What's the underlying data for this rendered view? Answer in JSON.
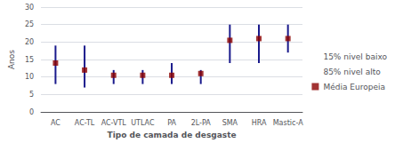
{
  "chart_data": {
    "type": "range",
    "categories": [
      "AC",
      "AC-TL",
      "AC-VTL",
      "UTLAC",
      "PA",
      "2L-PA",
      "SMA",
      "HRA",
      "Mastic-A"
    ],
    "series": [
      {
        "name": "15% nivel baixo",
        "color": "#1a1a8c",
        "values": [
          8,
          7,
          8,
          8,
          8,
          8,
          14,
          14,
          17
        ]
      },
      {
        "name": "85% nivel alto",
        "color": "#1a1a8c",
        "values": [
          19,
          19,
          12,
          12,
          14,
          12,
          25,
          25,
          25
        ]
      },
      {
        "name": "Média Europeia",
        "color": "#8b0000",
        "marker": "square",
        "values": [
          14,
          12,
          10.5,
          10.5,
          10.5,
          11,
          20.5,
          21,
          21
        ]
      }
    ],
    "xlabel": "Tipo de camada de desgaste",
    "ylabel": "Anos",
    "ylim": [
      0,
      30
    ],
    "yticks": [
      0,
      5,
      10,
      15,
      20,
      25,
      30
    ],
    "grid": true,
    "legend": "right"
  }
}
